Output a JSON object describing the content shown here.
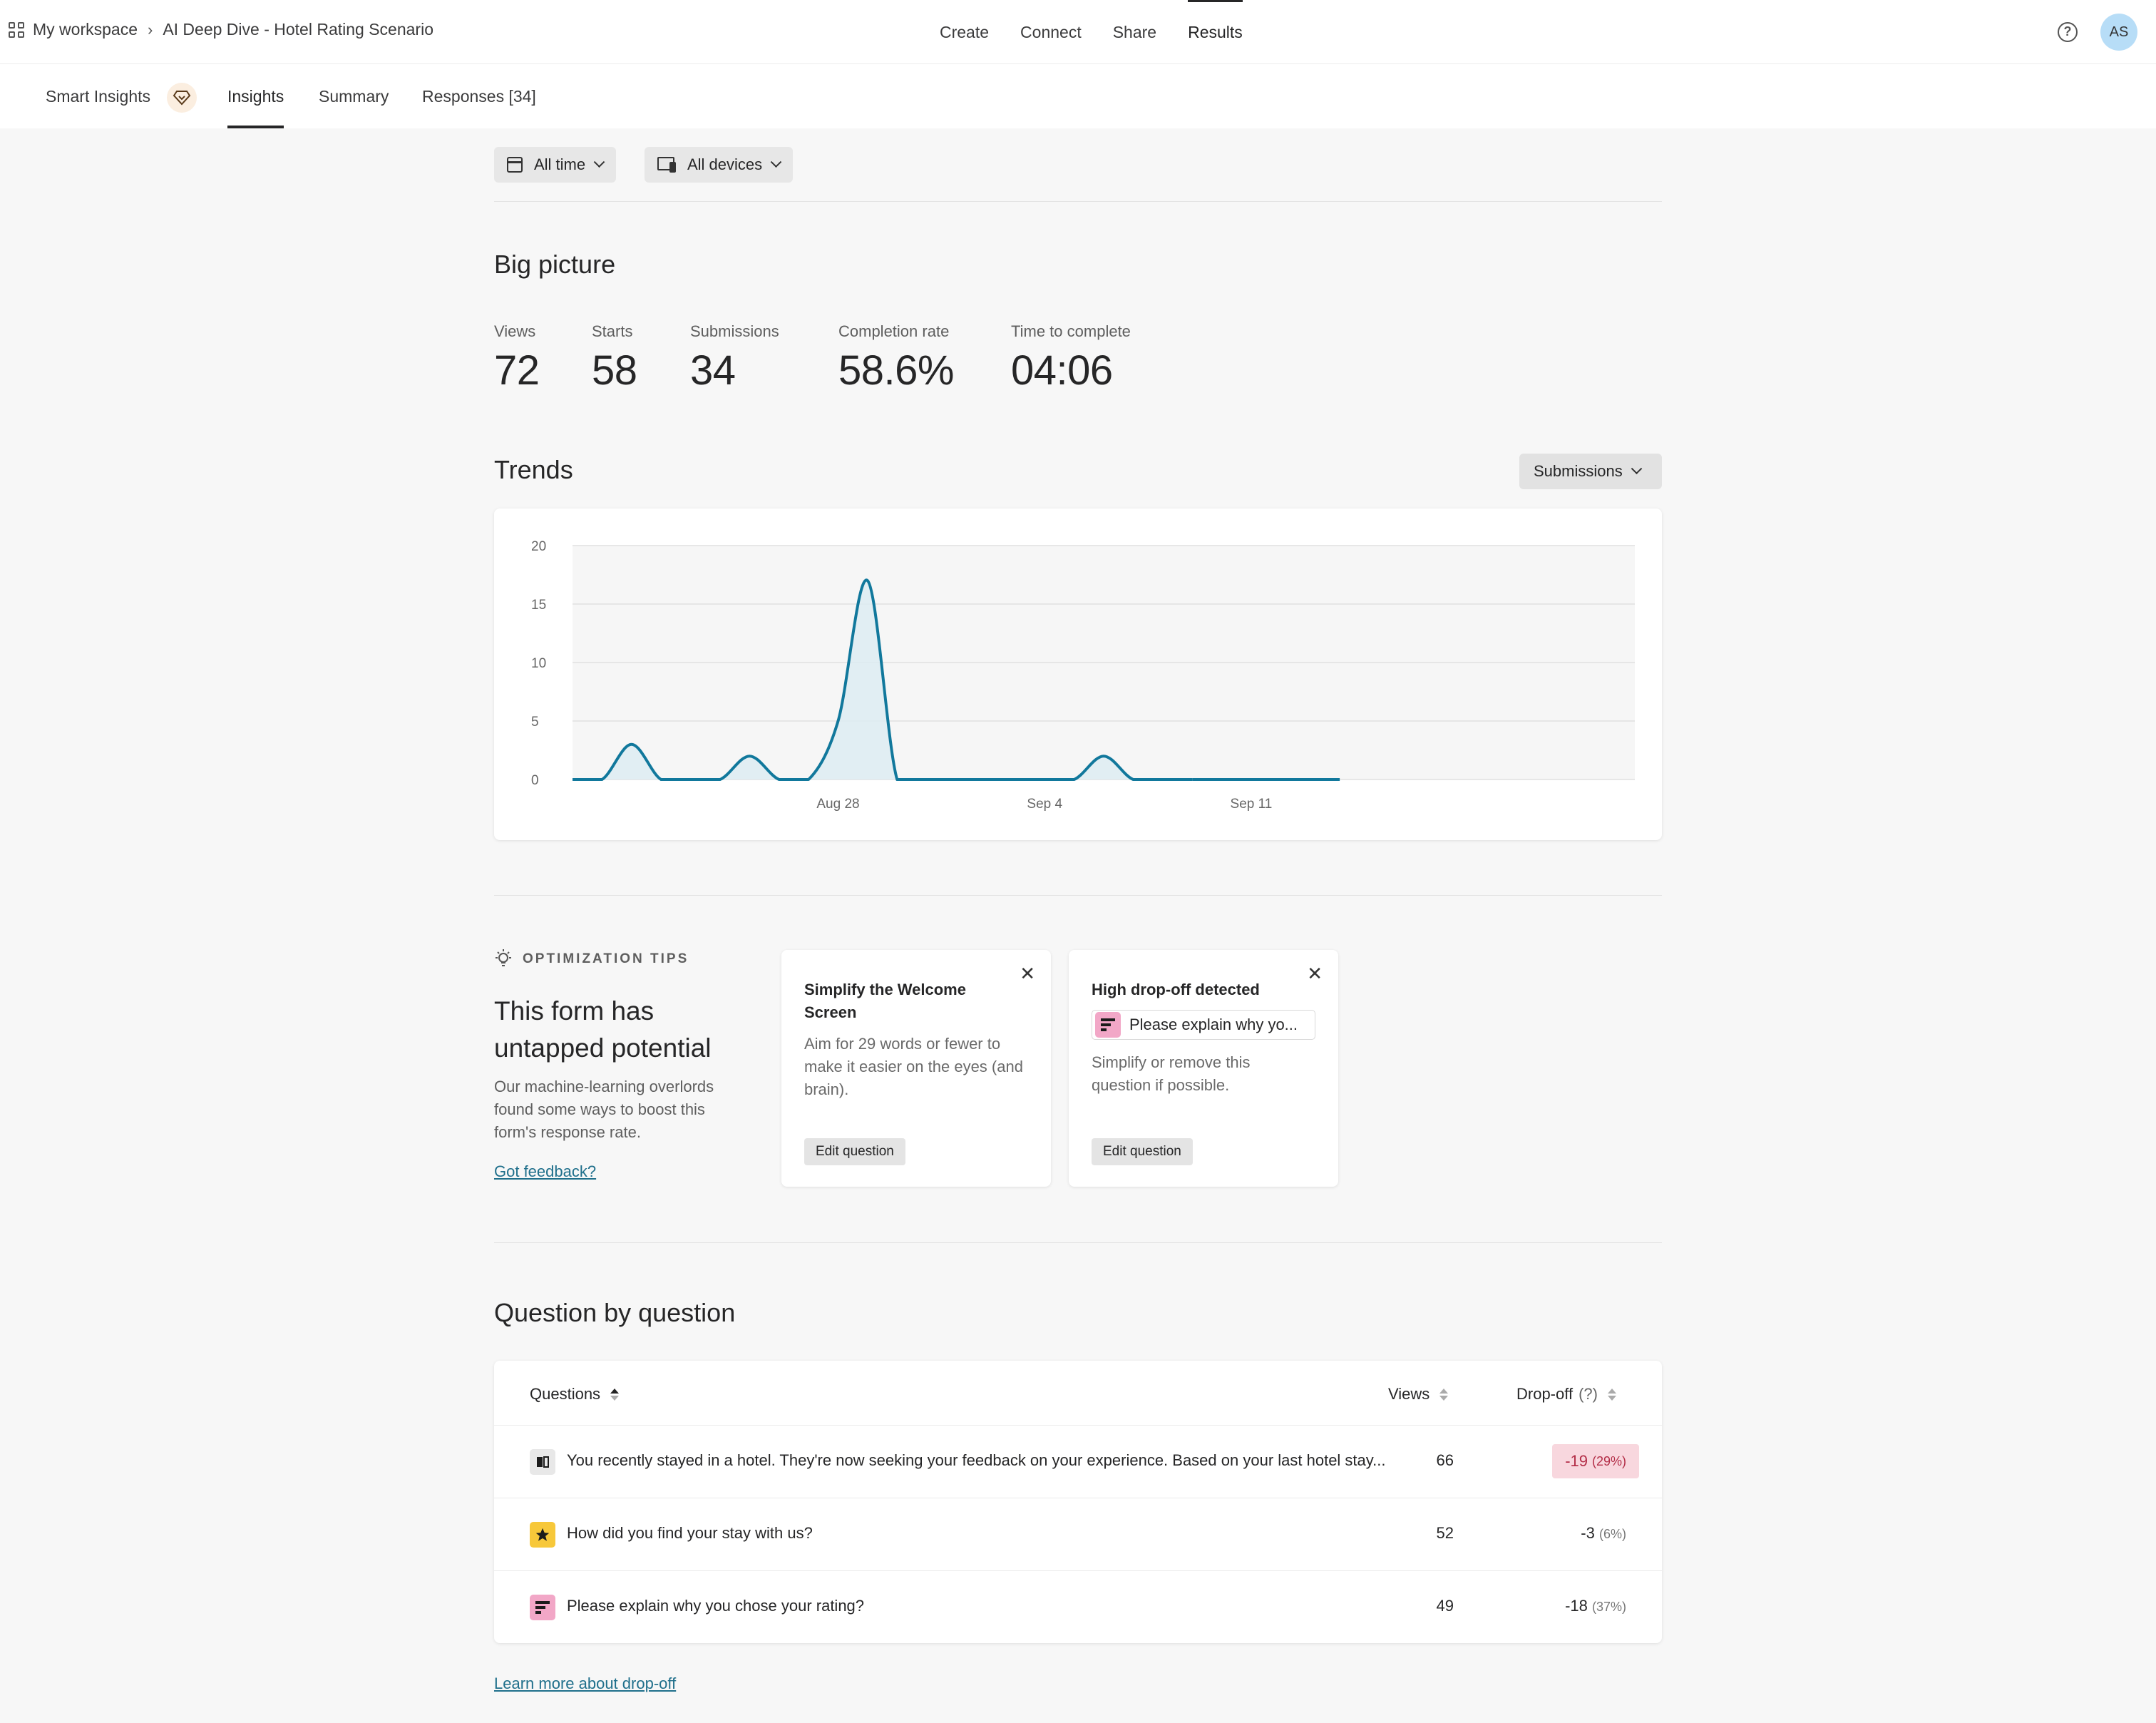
{
  "breadcrumb": {
    "workspace": "My workspace",
    "form": "AI Deep Dive - Hotel Rating Scenario"
  },
  "topnav": [
    "Create",
    "Connect",
    "Share",
    "Results"
  ],
  "topnav_active": "Results",
  "user": {
    "initials": "AS",
    "avatar_color": "#b7ddf7"
  },
  "subnav": {
    "smart": "Smart Insights",
    "insights": "Insights",
    "summary": "Summary",
    "responses": "Responses [34]"
  },
  "filters": {
    "time": "All time",
    "devices": "All devices"
  },
  "big_picture": {
    "title": "Big picture",
    "metrics": [
      {
        "label": "Views",
        "value": "72"
      },
      {
        "label": "Starts",
        "value": "58"
      },
      {
        "label": "Submissions",
        "value": "34"
      },
      {
        "label": "Completion rate",
        "value": "58.6%"
      },
      {
        "label": "Time to complete",
        "value": "04:06"
      }
    ]
  },
  "trends": {
    "title": "Trends",
    "metric_select": "Submissions"
  },
  "chart_data": {
    "type": "area",
    "x_tick_labels": [
      "Aug 28",
      "Sep 4",
      "Sep 11"
    ],
    "y_ticks": [
      0,
      5,
      10,
      15,
      20
    ],
    "ylim": [
      0,
      20
    ],
    "xlim_days_from_aug19": [
      0,
      36
    ],
    "series": [
      {
        "points": [
          [
            0,
            0
          ],
          [
            1,
            0
          ],
          [
            2,
            3
          ],
          [
            3,
            0
          ],
          [
            4,
            0
          ],
          [
            5,
            0
          ],
          [
            6,
            2
          ],
          [
            7,
            0
          ],
          [
            8,
            0
          ],
          [
            9,
            5
          ],
          [
            10,
            17
          ],
          [
            11,
            0
          ],
          [
            12,
            0
          ],
          [
            13,
            0
          ],
          [
            14,
            0
          ],
          [
            15,
            0
          ],
          [
            16,
            0
          ],
          [
            17,
            0
          ],
          [
            18,
            2
          ],
          [
            19,
            0
          ],
          [
            20,
            0
          ],
          [
            21,
            0
          ],
          [
            22,
            0
          ],
          [
            23,
            0
          ],
          [
            24,
            0
          ],
          [
            25,
            0
          ],
          [
            26,
            0
          ],
          [
            27,
            0
          ],
          [
            28,
            0
          ],
          [
            29,
            0
          ],
          [
            30,
            0
          ],
          [
            31,
            0
          ],
          [
            32,
            0
          ],
          [
            33,
            0
          ],
          [
            34,
            0
          ],
          [
            35,
            0
          ],
          [
            36,
            0
          ]
        ],
        "color": "#11789c"
      }
    ],
    "grid": true
  },
  "tips": {
    "heading": "OPTIMIZATION TIPS",
    "title": "This form has untapped potential",
    "description": "Our machine-learning overlords found some ways to boost this form's response rate.",
    "feedback_link": "Got feedback?",
    "cards": [
      {
        "title": "Simplify the Welcome Screen",
        "body": "Aim for 29 words or fewer to make it easier on the eyes (and brain).",
        "button": "Edit question"
      },
      {
        "title": "High drop-off detected",
        "chip": "Please explain why yo...",
        "body": "Simplify or remove this question if possible.",
        "button": "Edit question"
      }
    ]
  },
  "qbq": {
    "title": "Question by question",
    "columns": {
      "questions": "Questions",
      "views": "Views",
      "dropoff": "Drop-off",
      "dropoff_help": "(?)"
    },
    "rows": [
      {
        "icon": "welcome-screen-icon",
        "question": "You recently stayed in a hotel. They're now seeking your feedback on your experience. Based on your last hotel stay...",
        "views": "66",
        "drop": "-19",
        "pct": "(29%)"
      },
      {
        "icon": "star-icon",
        "question": "How did you find your stay with us?",
        "views": "52",
        "drop": "-3",
        "pct": "(6%)"
      },
      {
        "icon": "long-text-icon",
        "question": "Please explain why you chose your rating?",
        "views": "49",
        "drop": "-18",
        "pct": "(37%)"
      }
    ],
    "learn_link": "Learn more about drop-off"
  }
}
